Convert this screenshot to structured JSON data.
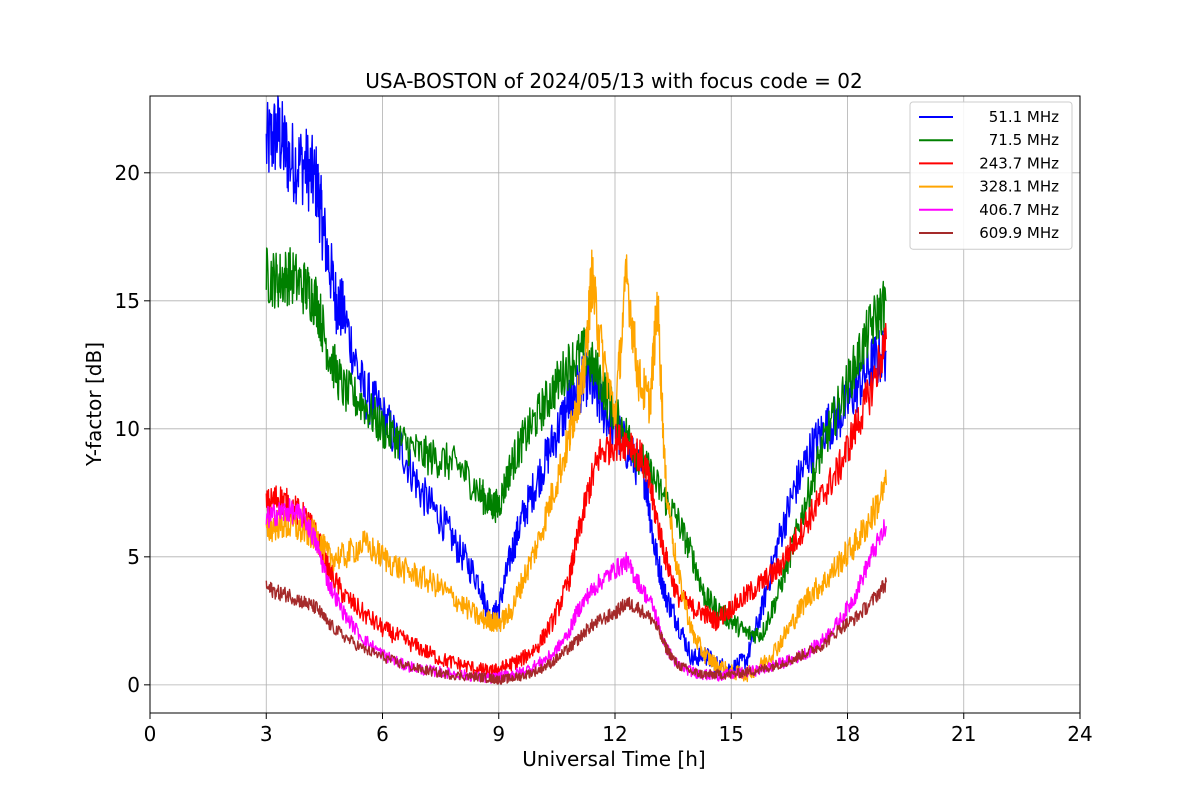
{
  "chart_data": {
    "type": "line",
    "title": "USA-BOSTON of 2024/05/13 with focus code = 02",
    "xlabel": "Universal Time [h]",
    "ylabel": "Y-factor [dB]",
    "xlim": [
      0,
      24
    ],
    "ylim": [
      -1.1,
      23.0
    ],
    "xticks": [
      0,
      3,
      6,
      9,
      12,
      15,
      18,
      21,
      24
    ],
    "yticks": [
      0,
      5,
      10,
      15,
      20
    ],
    "grid": true,
    "legend_position": "top-right",
    "series": [
      {
        "name": "51.1 MHz",
        "color": "#0000ff",
        "x": [
          3.0,
          3.3,
          3.6,
          4.0,
          4.3,
          4.5,
          4.8,
          5.0,
          5.5,
          6.0,
          6.5,
          7.0,
          7.5,
          8.0,
          8.5,
          8.8,
          9.0,
          9.3,
          9.6,
          10.0,
          10.4,
          10.8,
          11.0,
          11.3,
          11.6,
          12.0,
          12.4,
          12.8,
          13.0,
          13.3,
          13.6,
          14.0,
          14.3,
          14.6,
          15.0,
          15.4,
          15.8,
          16.2,
          16.6,
          17.0,
          17.4,
          17.8,
          18.2,
          18.6,
          19.0
        ],
        "y": [
          21.0,
          21.6,
          20.5,
          20.3,
          19.6,
          17.5,
          15.0,
          14.5,
          11.5,
          10.5,
          9.2,
          7.5,
          6.5,
          5.2,
          4.0,
          2.5,
          3.0,
          5.0,
          6.5,
          8.0,
          9.5,
          11.0,
          11.5,
          12.0,
          11.0,
          10.0,
          9.0,
          8.0,
          5.5,
          3.5,
          2.5,
          1.0,
          1.2,
          0.8,
          0.6,
          1.0,
          3.0,
          5.5,
          7.5,
          9.0,
          10.0,
          10.5,
          11.5,
          12.5,
          13.0
        ]
      },
      {
        "name": "71.5 MHz",
        "color": "#008000",
        "x": [
          3.0,
          3.3,
          3.6,
          4.0,
          4.3,
          4.6,
          5.0,
          5.5,
          6.0,
          6.5,
          7.0,
          7.5,
          8.0,
          8.5,
          8.8,
          9.0,
          9.3,
          9.6,
          10.0,
          10.4,
          10.8,
          11.2,
          11.6,
          12.0,
          12.4,
          12.8,
          13.2,
          13.6,
          14.0,
          14.3,
          14.6,
          15.0,
          15.4,
          15.8,
          16.2,
          16.6,
          17.0,
          17.4,
          17.8,
          18.2,
          18.6,
          19.0
        ],
        "y": [
          16.0,
          15.8,
          16.0,
          15.5,
          15.0,
          13.0,
          11.5,
          11.0,
          10.0,
          9.5,
          9.0,
          8.8,
          8.5,
          7.5,
          7.0,
          7.0,
          8.5,
          9.5,
          10.5,
          11.5,
          12.5,
          13.0,
          12.0,
          10.5,
          9.5,
          8.5,
          7.5,
          6.5,
          5.0,
          3.5,
          3.0,
          2.5,
          2.0,
          2.0,
          3.5,
          5.5,
          7.5,
          9.5,
          11.0,
          12.5,
          14.0,
          15.0
        ]
      },
      {
        "name": "243.7 MHz",
        "color": "#ff0000",
        "x": [
          3.0,
          3.3,
          3.6,
          4.0,
          4.3,
          4.6,
          5.0,
          5.5,
          6.0,
          6.5,
          7.0,
          7.5,
          8.0,
          8.5,
          8.8,
          9.0,
          9.3,
          9.6,
          10.0,
          10.4,
          10.8,
          11.0,
          11.3,
          11.6,
          12.0,
          12.4,
          12.8,
          13.0,
          13.3,
          13.6,
          14.0,
          14.3,
          14.6,
          15.0,
          15.4,
          15.8,
          16.2,
          16.6,
          17.0,
          17.4,
          17.8,
          18.2,
          18.6,
          19.0
        ],
        "y": [
          7.0,
          7.3,
          7.0,
          6.5,
          5.8,
          4.5,
          3.5,
          2.8,
          2.2,
          1.8,
          1.4,
          1.0,
          0.8,
          0.6,
          0.5,
          0.6,
          0.8,
          1.0,
          1.5,
          2.5,
          4.0,
          5.5,
          7.5,
          9.0,
          9.5,
          9.5,
          8.5,
          7.0,
          5.0,
          3.5,
          3.0,
          2.8,
          2.5,
          3.0,
          3.5,
          4.0,
          4.5,
          5.5,
          6.5,
          7.5,
          8.5,
          10.0,
          11.5,
          13.5
        ]
      },
      {
        "name": "328.1 MHz",
        "color": "#ffa500",
        "x": [
          3.0,
          3.3,
          3.6,
          4.0,
          4.3,
          4.6,
          5.0,
          5.5,
          6.0,
          6.5,
          7.0,
          7.5,
          8.0,
          8.5,
          8.8,
          9.0,
          9.3,
          9.6,
          10.0,
          10.4,
          10.8,
          11.0,
          11.2,
          11.4,
          11.6,
          12.0,
          12.3,
          12.6,
          12.9,
          13.1,
          13.3,
          13.6,
          14.0,
          14.3,
          14.6,
          15.0,
          15.4,
          15.8,
          16.2,
          16.6,
          17.0,
          17.4,
          17.8,
          18.2,
          18.6,
          19.0
        ],
        "y": [
          6.0,
          6.3,
          6.2,
          6.0,
          5.8,
          5.0,
          5.0,
          5.5,
          5.0,
          4.5,
          4.2,
          3.8,
          3.2,
          2.6,
          2.5,
          2.4,
          2.8,
          4.0,
          5.5,
          7.5,
          9.5,
          11.0,
          12.0,
          16.0,
          13.5,
          10.5,
          16.0,
          12.0,
          11.0,
          15.0,
          8.0,
          4.5,
          2.0,
          1.2,
          0.8,
          0.5,
          0.4,
          0.8,
          1.5,
          2.5,
          3.5,
          4.0,
          4.8,
          5.5,
          6.5,
          7.8
        ]
      },
      {
        "name": "406.7 MHz",
        "color": "#ff00ff",
        "x": [
          3.0,
          3.3,
          3.6,
          4.0,
          4.3,
          4.6,
          5.0,
          5.5,
          6.0,
          6.5,
          7.0,
          7.5,
          8.0,
          8.5,
          8.8,
          9.0,
          9.3,
          9.6,
          10.0,
          10.4,
          10.8,
          11.0,
          11.3,
          11.6,
          12.0,
          12.3,
          12.6,
          13.0,
          13.3,
          13.6,
          14.0,
          14.3,
          14.6,
          15.0,
          15.4,
          15.8,
          16.2,
          16.6,
          17.0,
          17.4,
          17.8,
          18.2,
          18.6,
          19.0
        ],
        "y": [
          6.5,
          6.7,
          6.8,
          6.5,
          5.5,
          4.0,
          2.8,
          1.8,
          1.2,
          0.8,
          0.6,
          0.5,
          0.4,
          0.3,
          0.25,
          0.3,
          0.4,
          0.5,
          0.8,
          1.2,
          2.0,
          2.8,
          3.5,
          4.0,
          4.5,
          4.8,
          4.0,
          3.0,
          1.5,
          0.8,
          0.5,
          0.4,
          0.35,
          0.4,
          0.5,
          0.6,
          0.8,
          1.0,
          1.3,
          1.8,
          2.5,
          3.5,
          5.0,
          6.2
        ]
      },
      {
        "name": "609.9 MHz",
        "color": "#a52a2a",
        "x": [
          3.0,
          3.3,
          3.6,
          4.0,
          4.3,
          4.6,
          5.0,
          5.5,
          6.0,
          6.5,
          7.0,
          7.5,
          8.0,
          8.5,
          8.8,
          9.0,
          9.3,
          9.6,
          10.0,
          10.4,
          10.8,
          11.0,
          11.3,
          11.6,
          12.0,
          12.3,
          12.6,
          13.0,
          13.3,
          13.6,
          14.0,
          14.3,
          14.6,
          15.0,
          15.4,
          15.8,
          16.2,
          16.6,
          17.0,
          17.4,
          17.8,
          18.2,
          18.6,
          19.0
        ],
        "y": [
          3.8,
          3.6,
          3.5,
          3.2,
          3.0,
          2.4,
          1.9,
          1.4,
          1.1,
          0.8,
          0.6,
          0.45,
          0.35,
          0.3,
          0.25,
          0.2,
          0.25,
          0.35,
          0.55,
          0.9,
          1.4,
          1.7,
          2.2,
          2.5,
          2.8,
          3.2,
          3.0,
          2.5,
          1.5,
          0.8,
          0.5,
          0.4,
          0.4,
          0.4,
          0.5,
          0.6,
          0.8,
          1.0,
          1.3,
          1.6,
          2.2,
          2.6,
          3.2,
          4.0
        ]
      }
    ]
  }
}
